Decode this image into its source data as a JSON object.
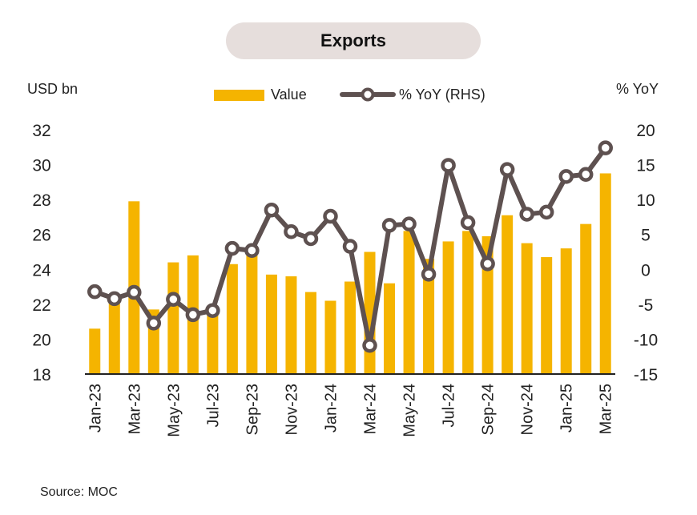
{
  "chart_data": {
    "type": "bar+line",
    "title": "Exports",
    "y_left_label": "USD bn",
    "y_right_label": "% YoY",
    "ylim_left": [
      18,
      32
    ],
    "ylim_right": [
      -15,
      20
    ],
    "yticks_left": [
      "18",
      "20",
      "22",
      "24",
      "26",
      "28",
      "30",
      "32"
    ],
    "yticks_right": [
      "-15",
      "-10",
      "-5",
      "0",
      "5",
      "10",
      "15",
      "20"
    ],
    "legend": {
      "placement": "top-center",
      "value_label": "Value",
      "yoy_label": "% YoY (RHS)"
    },
    "x_tick_labels": [
      "Jan-23",
      "Mar-23",
      "May-23",
      "Jul-23",
      "Sep-23",
      "Nov-23",
      "Jan-24",
      "Mar-24",
      "May-24",
      "Jul-24",
      "Sep-24",
      "Nov-24",
      "Jan-25",
      "Mar-25"
    ],
    "x": [
      "Jan-23",
      "Feb-23",
      "Mar-23",
      "Apr-23",
      "May-23",
      "Jun-23",
      "Jul-23",
      "Aug-23",
      "Sep-23",
      "Oct-23",
      "Nov-23",
      "Dec-23",
      "Jan-24",
      "Feb-24",
      "Mar-24",
      "Apr-24",
      "May-24",
      "Jun-24",
      "Jul-24",
      "Aug-24",
      "Sep-24",
      "Oct-24",
      "Nov-24",
      "Dec-24",
      "Jan-25",
      "Feb-25",
      "Mar-25"
    ],
    "series": [
      {
        "name": "Value",
        "axis": "left",
        "kind": "bar",
        "color": "#f5b400",
        "values": [
          20.6,
          22.2,
          27.9,
          21.7,
          24.4,
          24.8,
          21.7,
          24.3,
          25.0,
          23.7,
          23.6,
          22.7,
          22.2,
          23.3,
          25.0,
          23.2,
          26.2,
          24.6,
          25.6,
          26.2,
          25.9,
          27.1,
          25.5,
          24.7,
          25.2,
          26.6,
          29.5
        ]
      },
      {
        "name": "% YoY (RHS)",
        "axis": "right",
        "kind": "line",
        "color": "#5e5150",
        "values": [
          -3.2,
          -4.2,
          -3.3,
          -7.7,
          -4.3,
          -6.5,
          -5.9,
          3.0,
          2.7,
          8.5,
          5.4,
          4.4,
          7.6,
          3.3,
          -10.9,
          6.3,
          6.5,
          -0.7,
          14.9,
          6.7,
          0.8,
          14.3,
          7.9,
          8.2,
          13.3,
          13.6,
          17.4
        ]
      }
    ]
  },
  "source": {
    "label": "Source:",
    "value": "MOC"
  }
}
